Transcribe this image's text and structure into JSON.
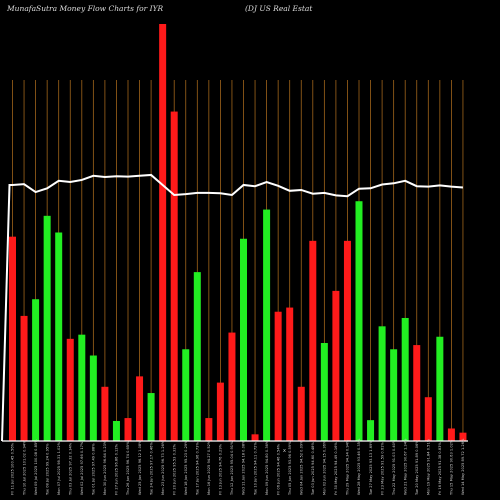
{
  "header": {
    "left": "MunafaSutra  Money Flow  Charts for IYR",
    "right": "(DJ US Real Estat"
  },
  "colors": {
    "background": "#000000",
    "up": "#22ee22",
    "down": "#ff1a1a",
    "grid": "#a0651b",
    "line": "#ffffff",
    "axis": "#ffffff"
  },
  "chart_data": {
    "type": "bar",
    "grid": true,
    "ylim": [
      0,
      100
    ],
    "bars": [
      {
        "label": "Fri 11 Jul 2025 100.45 0.56%",
        "value": 49.0,
        "color": "red"
      },
      {
        "label": "Thu 10 Jul 2025 101.02 0.94%",
        "value": 30.0,
        "color": "red"
      },
      {
        "label": "Wed 09 Jul 2025 100.08 0.85%",
        "value": 34.0,
        "color": "green"
      },
      {
        "label": "Tue 08 Jul 2025 99.24 0.95%",
        "value": 54.0,
        "color": "green"
      },
      {
        "label": "Mon 07 Jul 2025 98.31 1.02%",
        "value": 50.0,
        "color": "green"
      },
      {
        "label": "Thu 03 Jul 2025 97.32 0.34%",
        "value": 24.5,
        "color": "red"
      },
      {
        "label": "Wed 02 Jul 2025 97.66 0.17%",
        "value": 25.5,
        "color": "green"
      },
      {
        "label": "Tue 01 Jul 2025 97.49 0.88%",
        "value": 20.5,
        "color": "green"
      },
      {
        "label": "Mon 30 Jun 2025 96.64 0.23%",
        "value": 13.0,
        "color": "red"
      },
      {
        "label": "Fri 27 Jun 2025 96.86 0.12%",
        "value": 4.8,
        "color": "green"
      },
      {
        "label": "Thu 26 Jun 2025 96.74 0.65%",
        "value": 5.5,
        "color": "red"
      },
      {
        "label": "Wed 25 Jun 2025 96.12 1.08%",
        "value": 15.5,
        "color": "red"
      },
      {
        "label": "Tue 24 Jun 2025 97.17 0.46%",
        "value": 11.5,
        "color": "green"
      },
      {
        "label": "Mon 23 Jun 2025 96.73 1.26%",
        "value": 100.0,
        "color": "red"
      },
      {
        "label": "Fri 20 Jun 2025 95.53 0.32%",
        "value": 79.0,
        "color": "red"
      },
      {
        "label": "Wed 18 Jun 2025 95.23 0.29%",
        "value": 22.0,
        "color": "green"
      },
      {
        "label": "Tue 17 Jun 2025 94.96 0.73%",
        "value": 40.5,
        "color": "green"
      },
      {
        "label": "Mon 16 Jun 2025 94.27 0.52%",
        "value": 5.5,
        "color": "red"
      },
      {
        "label": "Fri 13 Jun 2025 94.76 0.29%",
        "value": 14.0,
        "color": "red"
      },
      {
        "label": "Thu 12 Jun 2025 95.04 0.91%",
        "value": 26.0,
        "color": "red"
      },
      {
        "label": "Wed 11 Jun 2025 94.18 0.08%",
        "value": 48.5,
        "color": "green"
      },
      {
        "label": "Tue 10 Jun 2025 94.11 0.72%",
        "value": 1.6,
        "color": "red"
      },
      {
        "label": "Mon 09 Jun 2025 94.80 0.36%",
        "value": 55.5,
        "color": "green"
      },
      {
        "label": "Fri 06 Jun 2025 94.46 0.54%",
        "value": 31.0,
        "color": "red"
      },
      {
        "label": "Thu 05 Jun 2025 93.96 0.59%",
        "value": 32.0,
        "color": "red"
      },
      {
        "label": "Wed 04 Jun 2025 94.52 0.09%",
        "value": 13.0,
        "color": "red"
      },
      {
        "label": "Tue 03 Jun 2025 94.60 0.48%",
        "value": 48.0,
        "color": "red"
      },
      {
        "label": "Mon 02 Jun 2025 94.15 0.36%",
        "value": 23.5,
        "color": "green"
      },
      {
        "label": "Fri 30 May 2025 94.49 0.16%",
        "value": 36.0,
        "color": "red"
      },
      {
        "label": "Thu 29 May 2025 94.34 0.94%",
        "value": 48.0,
        "color": "red"
      },
      {
        "label": "Wed 28 May 2025 93.46 0.35%",
        "value": 57.5,
        "color": "green"
      },
      {
        "label": "Tue 27 May 2025 93.13 1.69%",
        "value": 5.0,
        "color": "green"
      },
      {
        "label": "Fri 23 May 2025 91.59 0.61%",
        "value": 27.5,
        "color": "green"
      },
      {
        "label": "Thu 22 May 2025 91.03 0.40%",
        "value": 22.0,
        "color": "green"
      },
      {
        "label": "Wed 21 May 2025 90.67 1.34%",
        "value": 29.5,
        "color": "green"
      },
      {
        "label": "Tue 20 May 2025 91.89 0.06%",
        "value": 23.0,
        "color": "red"
      },
      {
        "label": "Mon 19 May 2025 91.84 0.51%",
        "value": 10.5,
        "color": "red"
      },
      {
        "label": "Fri 16 May 2025 91.38 0.83%",
        "value": 25.0,
        "color": "green"
      },
      {
        "label": "Thu 15 May 2025 90.63 1.02%",
        "value": 3.0,
        "color": "red"
      },
      {
        "label": "Wed 14 May 2025 89.72 1.26%",
        "value": 2.0,
        "color": "red"
      }
    ],
    "line_values": [
      61.4,
      61.6,
      59.7,
      60.6,
      62.4,
      62.1,
      62.6,
      63.6,
      63.3,
      63.5,
      63.4,
      63.6,
      63.8,
      61.4,
      59.0,
      59.2,
      59.5,
      59.5,
      59.4,
      59.0,
      61.4,
      61.1,
      62.1,
      61.2,
      60.0,
      60.2,
      59.3,
      59.5,
      58.9,
      58.7,
      60.5,
      60.6,
      61.5,
      61.8,
      62.4,
      61.1,
      61.0,
      61.3,
      61.0,
      60.8
    ],
    "line_start": 61.4,
    "center_marker": "x"
  }
}
